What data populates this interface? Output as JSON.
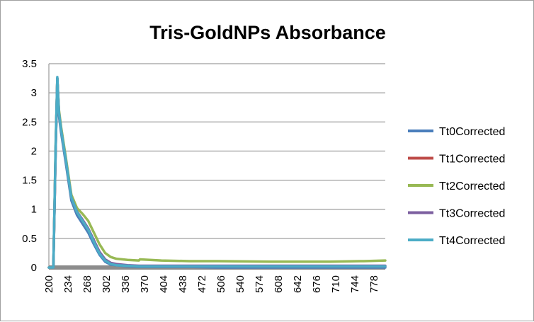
{
  "chart_data": {
    "type": "line",
    "title": "Tris-GoldNPs Absorbance",
    "xlabel": "",
    "ylabel": "",
    "ylim": [
      0,
      3.5
    ],
    "y_ticks": [
      "0",
      "0.5",
      "1",
      "1.5",
      "2",
      "2.5",
      "3",
      "3.5"
    ],
    "x_ticks": [
      "200",
      "234",
      "268",
      "302",
      "336",
      "370",
      "404",
      "438",
      "472",
      "506",
      "540",
      "574",
      "608",
      "642",
      "676",
      "710",
      "744",
      "778"
    ],
    "xlim": [
      200,
      798
    ],
    "grid": "horizontal",
    "legend_position": "right",
    "series": [
      {
        "name": "Tt0Corrected",
        "color": "#4A7EBB",
        "x": [
          200,
          208,
          212,
          215,
          218,
          222,
          230,
          240,
          250,
          260,
          270,
          280,
          290,
          300,
          310,
          320,
          340,
          360,
          400,
          450,
          500,
          600,
          700,
          798
        ],
        "y": [
          0,
          0,
          2.0,
          3.25,
          2.6,
          2.3,
          1.8,
          1.15,
          0.9,
          0.75,
          0.6,
          0.4,
          0.22,
          0.1,
          0.05,
          0.04,
          0.02,
          0.01,
          0.01,
          0.01,
          0.0,
          0.0,
          0.0,
          0.0
        ]
      },
      {
        "name": "Tt1Corrected",
        "color": "#BE4B48",
        "x": [
          200,
          208,
          212,
          215,
          218,
          222,
          230,
          240,
          250,
          260,
          270,
          280,
          290,
          300,
          310,
          320,
          340,
          360,
          400,
          450,
          500,
          600,
          700,
          798
        ],
        "y": [
          0,
          0,
          2.0,
          3.25,
          2.65,
          2.35,
          1.85,
          1.2,
          0.95,
          0.8,
          0.65,
          0.45,
          0.26,
          0.13,
          0.07,
          0.05,
          0.03,
          0.02,
          0.02,
          0.02,
          0.02,
          0.02,
          0.02,
          0.02
        ]
      },
      {
        "name": "Tt2Corrected",
        "color": "#98B954",
        "x": [
          200,
          208,
          212,
          215,
          218,
          222,
          230,
          240,
          250,
          260,
          270,
          280,
          290,
          300,
          310,
          320,
          340,
          360,
          362,
          400,
          450,
          500,
          600,
          700,
          760,
          798
        ],
        "y": [
          0,
          0,
          2.1,
          3.25,
          2.7,
          2.4,
          1.9,
          1.25,
          1.02,
          0.92,
          0.8,
          0.6,
          0.4,
          0.25,
          0.18,
          0.15,
          0.13,
          0.12,
          0.14,
          0.12,
          0.11,
          0.11,
          0.1,
          0.1,
          0.11,
          0.12
        ]
      },
      {
        "name": "Tt3Corrected",
        "color": "#7D60A0",
        "x": [
          200,
          208,
          212,
          215,
          218,
          222,
          230,
          240,
          250,
          260,
          270,
          280,
          290,
          300,
          310,
          320,
          340,
          360,
          400,
          450,
          500,
          600,
          700,
          798
        ],
        "y": [
          0,
          0,
          2.0,
          3.25,
          2.65,
          2.35,
          1.85,
          1.2,
          0.96,
          0.82,
          0.67,
          0.47,
          0.27,
          0.14,
          0.08,
          0.06,
          0.04,
          0.03,
          0.03,
          0.03,
          0.03,
          0.03,
          0.03,
          0.03
        ]
      },
      {
        "name": "Tt4Corrected",
        "color": "#4BACC6",
        "x": [
          200,
          208,
          212,
          215,
          218,
          222,
          230,
          240,
          250,
          260,
          270,
          280,
          290,
          300,
          310,
          320,
          340,
          360,
          400,
          450,
          500,
          600,
          700,
          798
        ],
        "y": [
          0,
          0,
          2.05,
          3.27,
          2.65,
          2.35,
          1.85,
          1.2,
          0.95,
          0.8,
          0.65,
          0.44,
          0.24,
          0.12,
          0.06,
          0.04,
          0.03,
          0.02,
          0.02,
          0.02,
          0.02,
          0.02,
          0.02,
          0.02
        ]
      }
    ]
  }
}
